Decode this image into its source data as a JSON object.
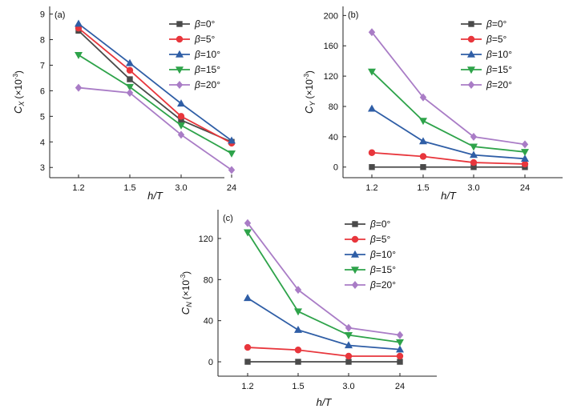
{
  "colors": {
    "beta0": "#4a4a4a",
    "beta5": "#e8363c",
    "beta10": "#2f5ea6",
    "beta15": "#2ea34a",
    "beta20": "#a97cc6"
  },
  "legend_symbol": "β",
  "chart_data": [
    {
      "type": "line",
      "panel_label": "(a)",
      "categories": [
        "1.2",
        "1.5",
        "3.0",
        "24"
      ],
      "xlabel": "h/T",
      "ylabel": "C_X (×10⁻³)",
      "ylabel_main": "C",
      "ylabel_sub": "X",
      "ylabel_unit": "(×10",
      "ylabel_exp": "-3",
      "ylabel_close": ")",
      "ylim": [
        2.6,
        9.3
      ],
      "yticks": [
        3,
        4,
        5,
        6,
        7,
        8,
        9
      ],
      "legend_position": "top-right",
      "series": [
        {
          "name": "β=0°",
          "label": "=0°",
          "marker": "square",
          "values": [
            8.35,
            6.45,
            4.85,
            4.0
          ]
        },
        {
          "name": "β=5°",
          "label": "=5°",
          "marker": "circle",
          "values": [
            8.45,
            6.8,
            5.0,
            3.95
          ]
        },
        {
          "name": "β=10°",
          "label": "=10°",
          "marker": "triangle-up",
          "values": [
            8.62,
            7.08,
            5.5,
            4.05
          ]
        },
        {
          "name": "β=15°",
          "label": "=15°",
          "marker": "triangle-down",
          "values": [
            7.4,
            6.15,
            4.65,
            3.55
          ]
        },
        {
          "name": "β=20°",
          "label": "=20°",
          "marker": "diamond",
          "values": [
            6.12,
            5.92,
            4.28,
            2.9
          ]
        }
      ]
    },
    {
      "type": "line",
      "panel_label": "(b)",
      "categories": [
        "1.2",
        "1.5",
        "3.0",
        "24"
      ],
      "xlabel": "h/T",
      "ylabel": "C_Y (×10⁻³)",
      "ylabel_main": "C",
      "ylabel_sub": "Y",
      "ylabel_unit": "(×10",
      "ylabel_exp": "-3",
      "ylabel_close": ")",
      "ylim": [
        -14,
        212
      ],
      "yticks": [
        0,
        40,
        80,
        120,
        160,
        200
      ],
      "legend_position": "top-right",
      "series": [
        {
          "name": "β=0°",
          "label": "=0°",
          "marker": "square",
          "values": [
            0,
            0,
            0,
            0
          ]
        },
        {
          "name": "β=5°",
          "label": "=5°",
          "marker": "circle",
          "values": [
            19,
            14,
            6,
            4
          ]
        },
        {
          "name": "β=10°",
          "label": "=10°",
          "marker": "triangle-up",
          "values": [
            77,
            34,
            16,
            11
          ]
        },
        {
          "name": "β=15°",
          "label": "=15°",
          "marker": "triangle-down",
          "values": [
            126,
            61,
            27,
            20
          ]
        },
        {
          "name": "β=20°",
          "label": "=20°",
          "marker": "diamond",
          "values": [
            178,
            92,
            40,
            30
          ]
        }
      ]
    },
    {
      "type": "line",
      "panel_label": "(c)",
      "categories": [
        "1.2",
        "1.5",
        "3.0",
        "24"
      ],
      "xlabel": "h/T",
      "ylabel": "C_N (×10⁻³)",
      "ylabel_main": "C",
      "ylabel_sub": "N",
      "ylabel_unit": "(×10",
      "ylabel_exp": "-3",
      "ylabel_close": ")",
      "ylim": [
        -14,
        148
      ],
      "yticks": [
        0,
        40,
        80,
        120
      ],
      "legend_position": "top-right",
      "series": [
        {
          "name": "β=0°",
          "label": "=0°",
          "marker": "square",
          "values": [
            0,
            0,
            0,
            0
          ]
        },
        {
          "name": "β=5°",
          "label": "=5°",
          "marker": "circle",
          "values": [
            14,
            11.5,
            5.5,
            5.5
          ]
        },
        {
          "name": "β=10°",
          "label": "=10°",
          "marker": "triangle-up",
          "values": [
            62,
            31,
            16,
            12
          ]
        },
        {
          "name": "β=15°",
          "label": "=15°",
          "marker": "triangle-down",
          "values": [
            126,
            49,
            26,
            19
          ]
        },
        {
          "name": "β=20°",
          "label": "=20°",
          "marker": "diamond",
          "values": [
            135,
            70,
            33,
            26
          ]
        }
      ]
    }
  ]
}
